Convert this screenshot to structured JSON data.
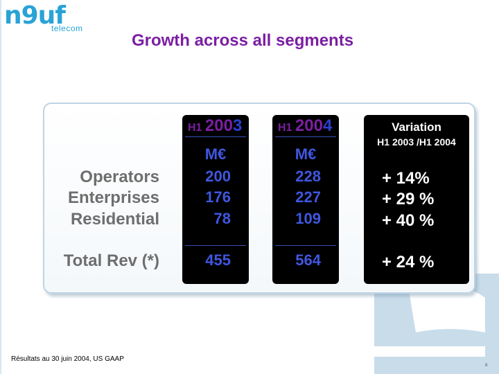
{
  "logo": {
    "word": "n9uf",
    "sub": "telecom"
  },
  "title": "Growth across all segments",
  "rows": {
    "operators": "Operators",
    "enterprises": "Enterprises",
    "residential": "Residential",
    "total": "Total Rev (*)"
  },
  "col_2003": {
    "h1": "H1",
    "year_a": "200",
    "year_b": "3",
    "unit": "M€",
    "operators": "200",
    "enterprises": "176",
    "residential": "78",
    "total": "455"
  },
  "col_2004": {
    "h1": "H1",
    "year_a": "200",
    "year_b": "4",
    "unit": "M€",
    "operators": "228",
    "enterprises": "227",
    "residential": "109",
    "total": "564"
  },
  "variation": {
    "title": "Variation",
    "subtitle": "H1 2003 /H1 2004",
    "operators": "+ 14%",
    "enterprises": "+ 29 %",
    "residential": "+ 40 %",
    "total": "+ 24 %"
  },
  "footnote": "Résultats au 30 juin 2004, US GAAP",
  "page_number": "8",
  "colors": {
    "brand_blue": "#29a3d6",
    "title_purple": "#7b1fa2",
    "value_blue": "#3f57e0",
    "deco_blue": "#c8dcea"
  }
}
